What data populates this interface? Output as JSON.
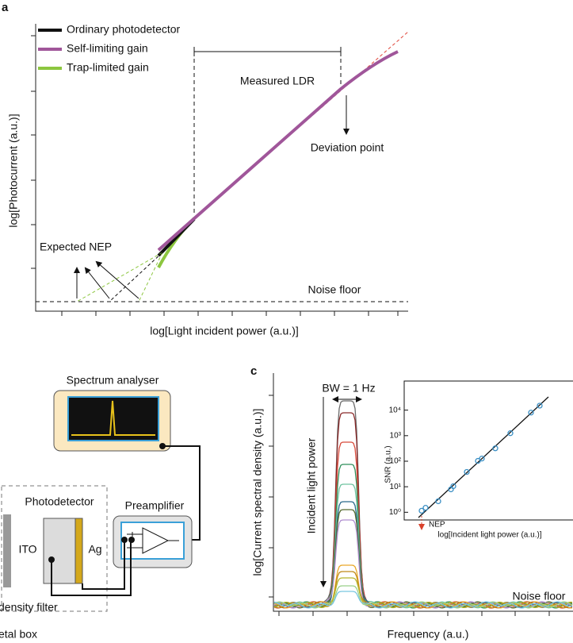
{
  "panel_a": {
    "label": "a",
    "legend": [
      "Ordinary photodetector",
      "Self-limiting gain",
      "Trap-limited gain"
    ],
    "measured_ldr": "Measured LDR",
    "deviation_point": "Deviation point",
    "expected_nep": "Expected NEP",
    "noise_floor": "Noise floor",
    "x_label": "log[Light incident power (a.u.)]",
    "y_label": "log[Photocurrent (a.u.)]"
  },
  "panel_b": {
    "spectrum_analyser": "Spectrum analyser",
    "photodetector": "Photodetector",
    "ito": "ITO",
    "ag": "Ag",
    "preamplifier": "Preamplifier",
    "filter": "density filter",
    "box": "etal box"
  },
  "panel_c": {
    "label": "c",
    "bandwidth": "BW = 1 Hz",
    "arrow_label": "Incident light power",
    "noise_floor": "Noise floor",
    "x_label": "Frequency (a.u.)",
    "y_label": "log[Current spectral density (a.u.)]"
  },
  "chart_data": {
    "type": "scatter",
    "x_label": "log[Incident light power (a.u.)]",
    "y_label": "SNR (a.u.)",
    "annotation": "NEP",
    "log_y": true,
    "color": "#3b8fc4",
    "xlim": [
      0,
      10
    ],
    "ylim": [
      0.5,
      100000
    ],
    "yticks": [
      {
        "value": 1,
        "label": "10⁰"
      },
      {
        "value": 10,
        "label": "10¹"
      },
      {
        "value": 100,
        "label": "10²"
      },
      {
        "value": 1000,
        "label": "10³"
      },
      {
        "value": 10000,
        "label": "10⁴"
      }
    ],
    "x": [
      0.1,
      0.35,
      1.15,
      1.95,
      2.1,
      2.95,
      3.65,
      3.9,
      4.75,
      5.7,
      7.0,
      7.55
    ],
    "y": [
      1.15,
      1.5,
      2.7,
      7.9,
      10.5,
      38,
      103,
      127,
      320,
      1250,
      8000,
      15000
    ]
  }
}
